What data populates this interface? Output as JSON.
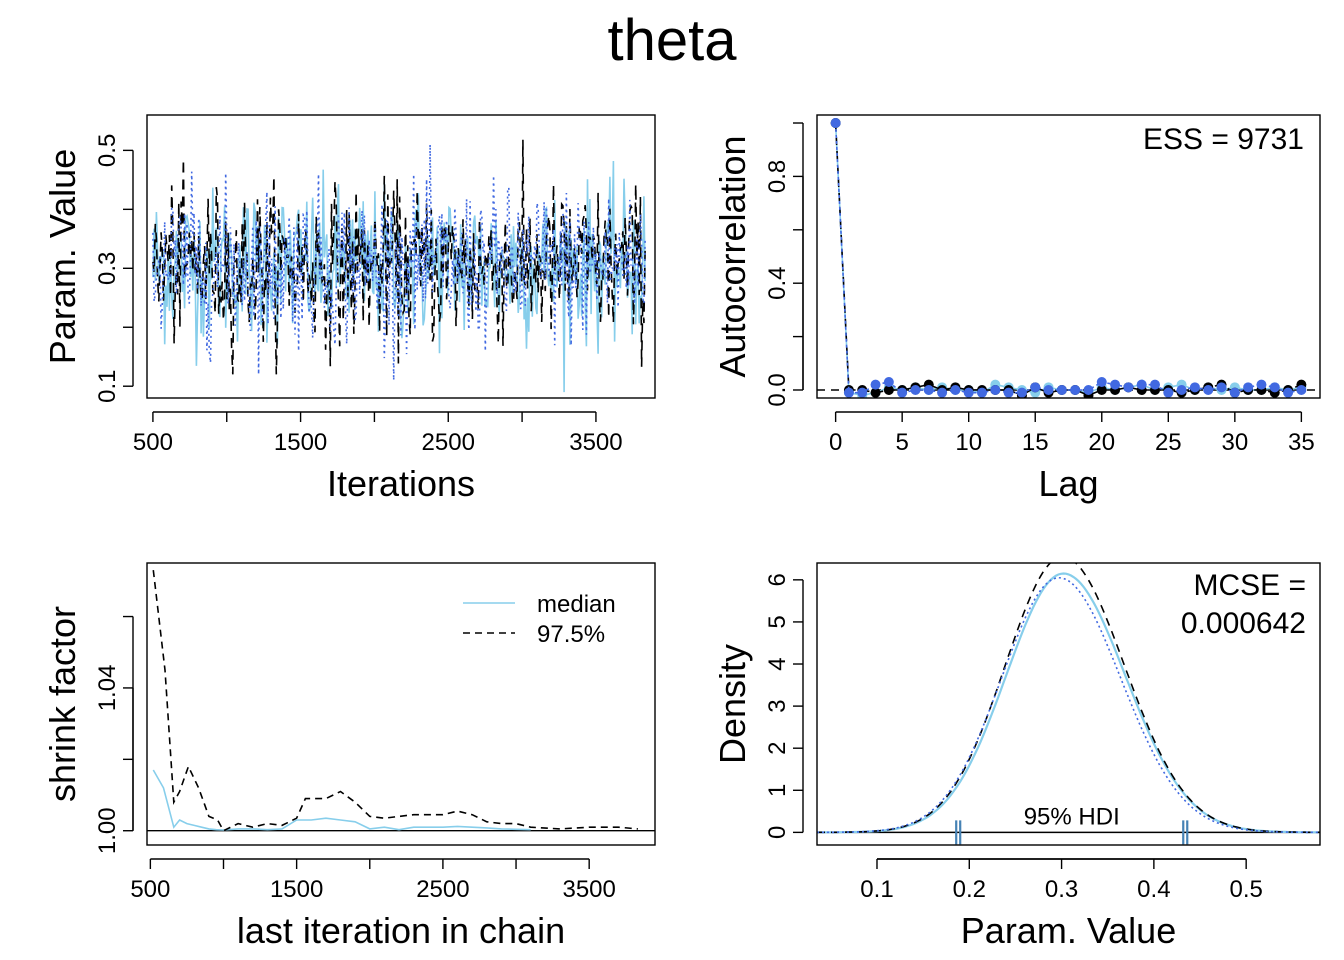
{
  "title": "theta",
  "colors": {
    "chain1": "#87CEEB",
    "chain2": "#000000",
    "chain3": "#4169E1",
    "chain4": "#4682B4"
  },
  "chart_data": [
    {
      "id": "trace",
      "type": "line",
      "xlabel": "Iterations",
      "ylabel": "Param. Value",
      "xlim": [
        460,
        3900
      ],
      "ylim": [
        0.08,
        0.56
      ],
      "xticks": [
        500,
        1500,
        2500,
        3500
      ],
      "xtick_labels": [
        "500",
        "1500",
        "2500",
        "3500"
      ],
      "yticks": [
        0.1,
        0.3,
        0.5
      ],
      "ytick_labels": [
        "0.1",
        "0.3",
        "0.5"
      ],
      "x_range": [
        500,
        3833
      ],
      "series": [
        {
          "color": "#87CEEB",
          "line": "solid",
          "mean": 0.305,
          "sd": 0.065,
          "min": 0.09,
          "max": 0.54
        },
        {
          "color": "#000000",
          "line": "dashed",
          "mean": 0.305,
          "sd": 0.065,
          "min": 0.12,
          "max": 0.53
        },
        {
          "color": "#4169E1",
          "line": "dotted",
          "mean": 0.305,
          "sd": 0.065,
          "min": 0.11,
          "max": 0.52
        }
      ]
    },
    {
      "id": "autocorr",
      "type": "scatter",
      "xlabel": "Lag",
      "ylabel": "Autocorrelation",
      "xlim": [
        -1.4,
        36.4
      ],
      "ylim": [
        -0.03,
        1.03
      ],
      "xticks": [
        0,
        5,
        10,
        15,
        20,
        25,
        30,
        35
      ],
      "xtick_labels": [
        "0",
        "5",
        "10",
        "15",
        "20",
        "25",
        "30",
        "35"
      ],
      "yticks": [
        0.0,
        0.4,
        0.8
      ],
      "ytick_labels": [
        "0.0",
        "0.4",
        "0.8"
      ],
      "annotation": "ESS = 9731",
      "lags": [
        0,
        1,
        2,
        3,
        4,
        5,
        6,
        7,
        8,
        9,
        10,
        11,
        12,
        13,
        14,
        15,
        16,
        17,
        18,
        19,
        20,
        21,
        22,
        23,
        24,
        25,
        26,
        27,
        28,
        29,
        30,
        31,
        32,
        33,
        34,
        35
      ],
      "series": [
        {
          "color": "#87CEEB",
          "values": [
            1,
            -0.01,
            -0.02,
            -0.01,
            0.01,
            0.0,
            0.01,
            0.0,
            0.01,
            0.0,
            0.0,
            -0.01,
            0.02,
            0.01,
            0.0,
            -0.01,
            0.01,
            0.0,
            0.0,
            -0.01,
            0.01,
            0.0,
            0.01,
            0.02,
            0.0,
            0.01,
            0.02,
            0.0,
            0.01,
            0.0,
            0.01,
            0.0,
            0.0,
            0.01,
            0.0,
            0.01
          ]
        },
        {
          "color": "#000000",
          "values": [
            1,
            0.0,
            0.0,
            -0.01,
            0.0,
            0.0,
            0.01,
            0.02,
            0.0,
            0.01,
            0.0,
            0.0,
            0.0,
            0.0,
            -0.02,
            0.01,
            -0.01,
            0.0,
            0.0,
            -0.02,
            0.0,
            0.0,
            0.01,
            0.0,
            0.0,
            0.0,
            -0.01,
            0.0,
            0.01,
            0.02,
            -0.01,
            0.0,
            0.0,
            -0.01,
            0.0,
            0.02
          ]
        },
        {
          "color": "#4169E1",
          "values": [
            1,
            -0.01,
            -0.01,
            0.02,
            0.03,
            -0.01,
            0.0,
            0.0,
            -0.01,
            0.0,
            -0.01,
            -0.01,
            0.0,
            -0.01,
            -0.01,
            0.01,
            0.0,
            0.0,
            0.0,
            0.0,
            0.03,
            0.02,
            0.01,
            0.02,
            0.02,
            -0.01,
            0.0,
            0.01,
            0.0,
            0.01,
            -0.01,
            0.01,
            0.02,
            0.01,
            -0.01,
            0.0
          ]
        }
      ]
    },
    {
      "id": "shrink",
      "type": "line",
      "xlabel": "last iteration in chain",
      "ylabel": "shrink factor",
      "xlim": [
        477,
        3950
      ],
      "ylim": [
        0.996,
        1.075
      ],
      "xticks": [
        500,
        1500,
        2500,
        3500
      ],
      "xtick_labels": [
        "500",
        "1500",
        "2500",
        "3500"
      ],
      "yticks": [
        1.0,
        1.04
      ],
      "ytick_labels": [
        "1.00",
        "1.04"
      ],
      "legend": {
        "position": "top-right",
        "entries": [
          "median",
          "97.5%"
        ]
      },
      "series": [
        {
          "name": "median",
          "color": "#87CEEB",
          "line": "solid",
          "x": [
            520,
            590,
            660,
            700,
            750,
            800,
            850,
            900,
            950,
            1000,
            1100,
            1200,
            1300,
            1400,
            1500,
            1600,
            1700,
            1800,
            1900,
            2000,
            2100,
            2200,
            2300,
            2400,
            2500,
            2600,
            2700,
            2800,
            2900,
            3000,
            3100
          ],
          "y": [
            1.017,
            1.012,
            1.001,
            1.003,
            1.002,
            1.0015,
            1.001,
            1.0005,
            1.0003,
            1.0002,
            1.0005,
            1.0005,
            1.0003,
            1.0005,
            1.003,
            1.003,
            1.0035,
            1.003,
            1.0025,
            1.0005,
            1.001,
            1.0003,
            1.001,
            1.001,
            1.001,
            1.0012,
            1.001,
            1.0008,
            1.0005,
            1.0004,
            1.0003
          ]
        },
        {
          "name": "97.5%",
          "color": "#000000",
          "line": "dashed",
          "x": [
            520,
            600,
            660,
            700,
            760,
            830,
            900,
            960,
            1000,
            1100,
            1200,
            1300,
            1400,
            1500,
            1560,
            1700,
            1800,
            1900,
            2000,
            2100,
            2200,
            2300,
            2400,
            2500,
            2600,
            2700,
            2800,
            2900,
            3000,
            3100,
            3300,
            3500,
            3700,
            3833
          ],
          "y": [
            1.073,
            1.045,
            1.008,
            1.011,
            1.018,
            1.012,
            1.004,
            1.003,
            1.0,
            1.002,
            1.001,
            1.002,
            1.0015,
            1.0035,
            1.009,
            1.009,
            1.011,
            1.008,
            1.004,
            1.0035,
            1.004,
            1.0045,
            1.0045,
            1.0045,
            1.0055,
            1.0045,
            1.0025,
            1.002,
            1.002,
            1.001,
            1.0005,
            1.001,
            1.001,
            1.0005
          ]
        }
      ]
    },
    {
      "id": "density",
      "type": "line",
      "xlabel": "Param. Value",
      "ylabel": "Density",
      "xlim": [
        0.035,
        0.58
      ],
      "ylim": [
        -0.3,
        6.4
      ],
      "xticks": [
        0.1,
        0.2,
        0.3,
        0.4,
        0.5
      ],
      "xtick_labels": [
        "0.1",
        "0.2",
        "0.3",
        "0.4",
        "0.5"
      ],
      "yticks": [
        0,
        1,
        2,
        3,
        4,
        5,
        6
      ],
      "ytick_labels": [
        "0",
        "1",
        "2",
        "3",
        "4",
        "5",
        "6"
      ],
      "annotation": [
        "MCSE =",
        "0.000642"
      ],
      "hdi": {
        "label": "95% HDI",
        "lower": 0.188,
        "upper": 0.434
      },
      "series": [
        {
          "color": "#87CEEB",
          "line": "solid",
          "mode": 0.302,
          "peak": 6.15
        },
        {
          "color": "#000000",
          "line": "dashed",
          "mode": 0.301,
          "peak": 6.55
        },
        {
          "color": "#4169E1",
          "line": "dotted",
          "mode": 0.297,
          "peak": 6.05
        }
      ]
    }
  ]
}
